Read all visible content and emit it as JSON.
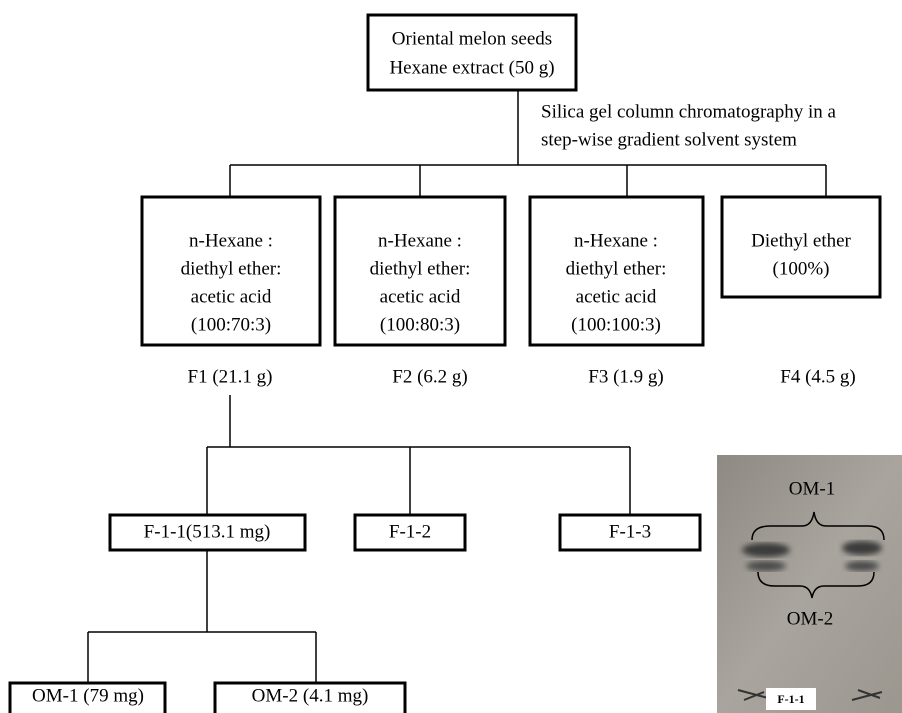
{
  "top": {
    "lines": [
      "Oriental melon seeds",
      "Hexane extract (50 g)"
    ]
  },
  "annotation": {
    "lines": [
      "Silica gel column chromatography in a",
      "step-wise gradient solvent system"
    ]
  },
  "solvents": [
    {
      "lines": [
        "n-Hexane :",
        "diethyl ether:",
        "acetic acid",
        "(100:70:3)"
      ],
      "fraction": "F1 (21.1 g)"
    },
    {
      "lines": [
        "n-Hexane :",
        "diethyl ether:",
        "acetic acid",
        "(100:80:3)"
      ],
      "fraction": "F2 (6.2 g)"
    },
    {
      "lines": [
        "n-Hexane :",
        "diethyl ether:",
        "acetic acid",
        "(100:100:3)"
      ],
      "fraction": "F3 (1.9 g)"
    },
    {
      "lines": [
        "Diethyl ether",
        "(100%)"
      ],
      "fraction": "F4 (4.5 g)"
    }
  ],
  "subfractions": [
    "F-1-1(513.1 mg)",
    "F-1-2",
    "F-1-3"
  ],
  "compounds": [
    "OM-1 (79 mg)",
    "OM-2 (4.1 mg)"
  ],
  "tlc": {
    "upper_label": "OM-1",
    "lower_label": "OM-2",
    "plate_label": "F-1-1"
  }
}
